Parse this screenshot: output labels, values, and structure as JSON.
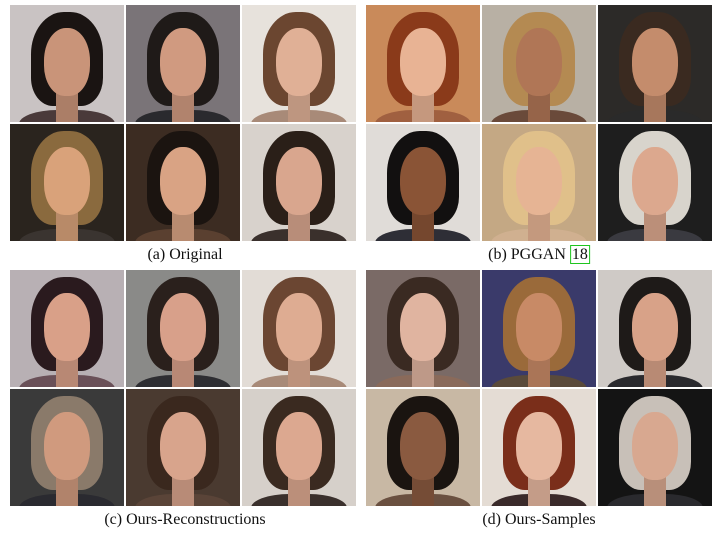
{
  "panels": [
    {
      "caption": "(a) Original",
      "images": [
        {
          "bg": "#c9c3c3",
          "hair": "#1a1412",
          "skin": "#c99479",
          "body": "#4a3a3a"
        },
        {
          "bg": "#7a7478",
          "hair": "#1f1a18",
          "skin": "#d09a80",
          "body": "#2a2a2e"
        },
        {
          "bg": "#e7e2dc",
          "hair": "#6b4630",
          "skin": "#e0b096",
          "body": "#a88a78"
        },
        {
          "bg": "#2a241e",
          "hair": "#8a6a3e",
          "skin": "#d9a27a",
          "body": "#3a3430"
        },
        {
          "bg": "#3c2c22",
          "hair": "#1b1410",
          "skin": "#d9a384",
          "body": "#5a4030"
        },
        {
          "bg": "#d8d2cc",
          "hair": "#2a1f18",
          "skin": "#d9a68e",
          "body": "#3a302c"
        }
      ]
    },
    {
      "caption": "(b) PGGAN",
      "ref": "18",
      "ref_color": "#1ec51e",
      "images": [
        {
          "bg": "#c98a5a",
          "hair": "#8a3a1a",
          "skin": "#e8b394",
          "body": "#a06040"
        },
        {
          "bg": "#b8b0a4",
          "hair": "#b48a52",
          "skin": "#b07656",
          "body": "#6a4a3a"
        },
        {
          "bg": "#2c2a28",
          "hair": "#3a2a20",
          "skin": "#c48c6c",
          "body": "#2a2a2a"
        },
        {
          "bg": "#e0dcd8",
          "hair": "#121010",
          "skin": "#8a5436",
          "body": "#2e2e36"
        },
        {
          "bg": "#c4a884",
          "hair": "#e0c08a",
          "skin": "#e6b494",
          "body": "#d0b090"
        },
        {
          "bg": "#1e1e1e",
          "hair": "#d8d4cc",
          "skin": "#dca88e",
          "body": "#3a3a40"
        }
      ]
    },
    {
      "caption": "(c) Ours-Reconstructions",
      "images": [
        {
          "bg": "#b8b0b4",
          "hair": "#2a1a1e",
          "skin": "#d9a088",
          "body": "#6a5058"
        },
        {
          "bg": "#8a8a88",
          "hair": "#2a201c",
          "skin": "#d8a08a",
          "body": "#2e2e32"
        },
        {
          "bg": "#e2dcd6",
          "hair": "#6b4632",
          "skin": "#deac92",
          "body": "#a88a78"
        },
        {
          "bg": "#3a3a3a",
          "hair": "#8a7a6a",
          "skin": "#d09a7e",
          "body": "#2a2a30"
        },
        {
          "bg": "#4a3a30",
          "hair": "#3a281e",
          "skin": "#d8a48c",
          "body": "#5a4438"
        },
        {
          "bg": "#d6d0ca",
          "hair": "#3a2a20",
          "skin": "#dca890",
          "body": "#3a302c"
        }
      ]
    },
    {
      "caption": "(d) Ours-Samples",
      "images": [
        {
          "bg": "#7a6a66",
          "hair": "#3a2a22",
          "skin": "#e0b4a0",
          "body": "#8a6a5a"
        },
        {
          "bg": "#3a3a6a",
          "hair": "#9a6a3a",
          "skin": "#c88a66",
          "body": "#5a4a3a"
        },
        {
          "bg": "#cfcac6",
          "hair": "#1e1a18",
          "skin": "#d8a288",
          "body": "#2a2a2e"
        },
        {
          "bg": "#c8b8a4",
          "hair": "#1a1410",
          "skin": "#8a5a40",
          "body": "#6a5040"
        },
        {
          "bg": "#e4dcd4",
          "hair": "#7a2e1a",
          "skin": "#e6b8a0",
          "body": "#3a2a2a"
        },
        {
          "bg": "#141414",
          "hair": "#c8c0b8",
          "skin": "#d8a890",
          "body": "#2a2a2e"
        }
      ]
    }
  ]
}
